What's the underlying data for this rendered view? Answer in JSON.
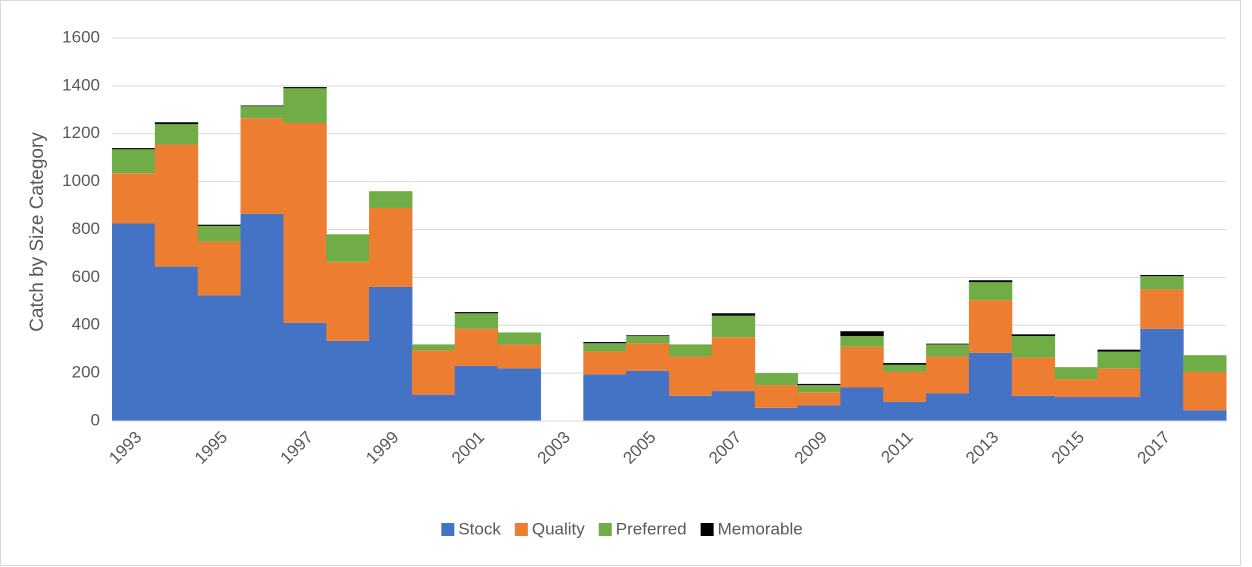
{
  "chart_data": {
    "type": "stacked_bar",
    "y_label": "Catch by Size Category",
    "categories": [
      "1993",
      null,
      "1995",
      null,
      "1997",
      null,
      "1999",
      null,
      "2001",
      null,
      "2003",
      null,
      "2005",
      null,
      "2007",
      null,
      "2009",
      null,
      "2011",
      null,
      "2013",
      null,
      "2015",
      null,
      "2017",
      null
    ],
    "series": [
      {
        "name": "Stock",
        "color": "#4472c4",
        "values": [
          825,
          645,
          525,
          865,
          410,
          335,
          560,
          110,
          230,
          220,
          null,
          195,
          210,
          105,
          125,
          55,
          65,
          140,
          80,
          115,
          285,
          105,
          100,
          100,
          385,
          45
        ]
      },
      {
        "name": "Quality",
        "color": "#ed7d31",
        "values": [
          210,
          510,
          225,
          400,
          835,
          330,
          330,
          185,
          155,
          100,
          null,
          95,
          115,
          165,
          225,
          95,
          55,
          170,
          125,
          155,
          220,
          160,
          75,
          120,
          165,
          160
        ]
      },
      {
        "name": "Preferred",
        "color": "#70ad47",
        "values": [
          100,
          85,
          65,
          50,
          145,
          115,
          70,
          25,
          65,
          50,
          null,
          35,
          30,
          50,
          90,
          50,
          30,
          45,
          30,
          50,
          75,
          90,
          50,
          70,
          55,
          70
        ]
      },
      {
        "name": "Memorable",
        "color": "#000000",
        "values": [
          5,
          8,
          5,
          3,
          5,
          0,
          0,
          0,
          5,
          0,
          null,
          5,
          3,
          0,
          10,
          0,
          5,
          20,
          7,
          3,
          8,
          7,
          0,
          8,
          5,
          0
        ]
      }
    ],
    "ylim": [
      0,
      1600
    ],
    "yticks": [
      0,
      200,
      400,
      600,
      800,
      1000,
      1200,
      1400,
      1600
    ],
    "grid": true,
    "legend": "bottom"
  }
}
